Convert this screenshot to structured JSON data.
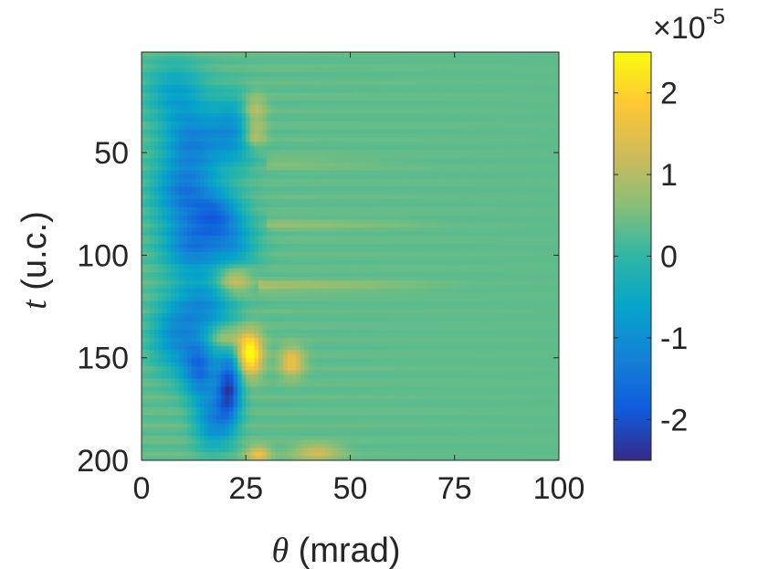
{
  "chart_data": {
    "type": "heatmap",
    "title": "",
    "xlabel": {
      "symbol": "θ",
      "unit": "(mrad)"
    },
    "ylabel": {
      "symbol": "t",
      "unit": "(u.c.)"
    },
    "xlim": [
      0,
      100
    ],
    "ylim": [
      1,
      200
    ],
    "y_reversed": true,
    "x_ticks": [
      0,
      25,
      50,
      75,
      100
    ],
    "x_tick_labels": [
      "0",
      "25",
      "50",
      "75",
      "100"
    ],
    "y_ticks": [
      50,
      100,
      150,
      200
    ],
    "y_tick_labels": [
      "50",
      "100",
      "150",
      "200"
    ],
    "colorbar": {
      "clim": [
        -2.5e-05,
        2.5e-05
      ],
      "ticks": [
        -2,
        -1,
        0,
        1,
        2
      ],
      "tick_labels": [
        "-2",
        "-1",
        "0",
        "1",
        "2"
      ],
      "multiplier_base": "×10",
      "multiplier_exponent": "-5",
      "colormap": "parula"
    },
    "colormap_stops": [
      "#352a87",
      "#0f5cdd",
      "#1481d6",
      "#06a4ca",
      "#2eb7a4",
      "#87bf77",
      "#d1bb59",
      "#fec832",
      "#f9fb0e"
    ],
    "grid": false,
    "background_value": 3.5e-06,
    "features": [
      {
        "kind": "blob",
        "theta": 8,
        "t": 20,
        "value": -9e-06,
        "sx": 5,
        "st": 10
      },
      {
        "kind": "blob",
        "theta": 12,
        "t": 45,
        "value": -1.5e-05,
        "sx": 5,
        "st": 12
      },
      {
        "kind": "blob",
        "theta": 22,
        "t": 40,
        "value": -1.2e-05,
        "sx": 4,
        "st": 12
      },
      {
        "kind": "blob",
        "theta": 10,
        "t": 70,
        "value": -1.5e-05,
        "sx": 5,
        "st": 10
      },
      {
        "kind": "blob",
        "theta": 18,
        "t": 80,
        "value": -1.4e-05,
        "sx": 4,
        "st": 8
      },
      {
        "kind": "blob",
        "theta": 12,
        "t": 95,
        "value": -1.6e-05,
        "sx": 5,
        "st": 10
      },
      {
        "kind": "blob",
        "theta": 22,
        "t": 95,
        "value": -1e-05,
        "sx": 4,
        "st": 10
      },
      {
        "kind": "blob",
        "theta": 15,
        "t": 125,
        "value": -1.3e-05,
        "sx": 5,
        "st": 10
      },
      {
        "kind": "blob",
        "theta": 8,
        "t": 140,
        "value": -1.2e-05,
        "sx": 4,
        "st": 12
      },
      {
        "kind": "blob",
        "theta": 14,
        "t": 155,
        "value": -1.8e-05,
        "sx": 3,
        "st": 10
      },
      {
        "kind": "blob",
        "theta": 21,
        "t": 165,
        "value": -2.4e-05,
        "sx": 2,
        "st": 12
      },
      {
        "kind": "blob",
        "theta": 17,
        "t": 180,
        "value": -1.4e-05,
        "sx": 3,
        "st": 10
      },
      {
        "kind": "blob",
        "theta": 27,
        "t": 30,
        "value": 1e-05,
        "sx": 2,
        "st": 6
      },
      {
        "kind": "blob",
        "theta": 27,
        "t": 42,
        "value": 1e-05,
        "sx": 2,
        "st": 4
      },
      {
        "kind": "blob",
        "theta": 22,
        "t": 112,
        "value": 1.2e-05,
        "sx": 3,
        "st": 5
      },
      {
        "kind": "blob",
        "theta": 26,
        "t": 148,
        "value": 2.4e-05,
        "sx": 2,
        "st": 7
      },
      {
        "kind": "blob",
        "theta": 36,
        "t": 152,
        "value": 1.3e-05,
        "sx": 2,
        "st": 5
      },
      {
        "kind": "blob",
        "theta": 20,
        "t": 140,
        "value": 1e-05,
        "sx": 3,
        "st": 4
      },
      {
        "kind": "blob",
        "theta": 28,
        "t": 197,
        "value": 1.2e-05,
        "sx": 2,
        "st": 3
      },
      {
        "kind": "blob",
        "theta": 42,
        "t": 196,
        "value": 9e-06,
        "sx": 4,
        "st": 3
      },
      {
        "kind": "band",
        "t": 115,
        "value": 6e-06,
        "theta_from": 28,
        "theta_to": 80,
        "st": 2
      },
      {
        "kind": "band",
        "t": 85,
        "value": 4e-06,
        "theta_from": 30,
        "theta_to": 75,
        "st": 2
      },
      {
        "kind": "band",
        "t": 55,
        "value": 3e-06,
        "theta_from": 30,
        "theta_to": 70,
        "st": 2
      }
    ]
  }
}
